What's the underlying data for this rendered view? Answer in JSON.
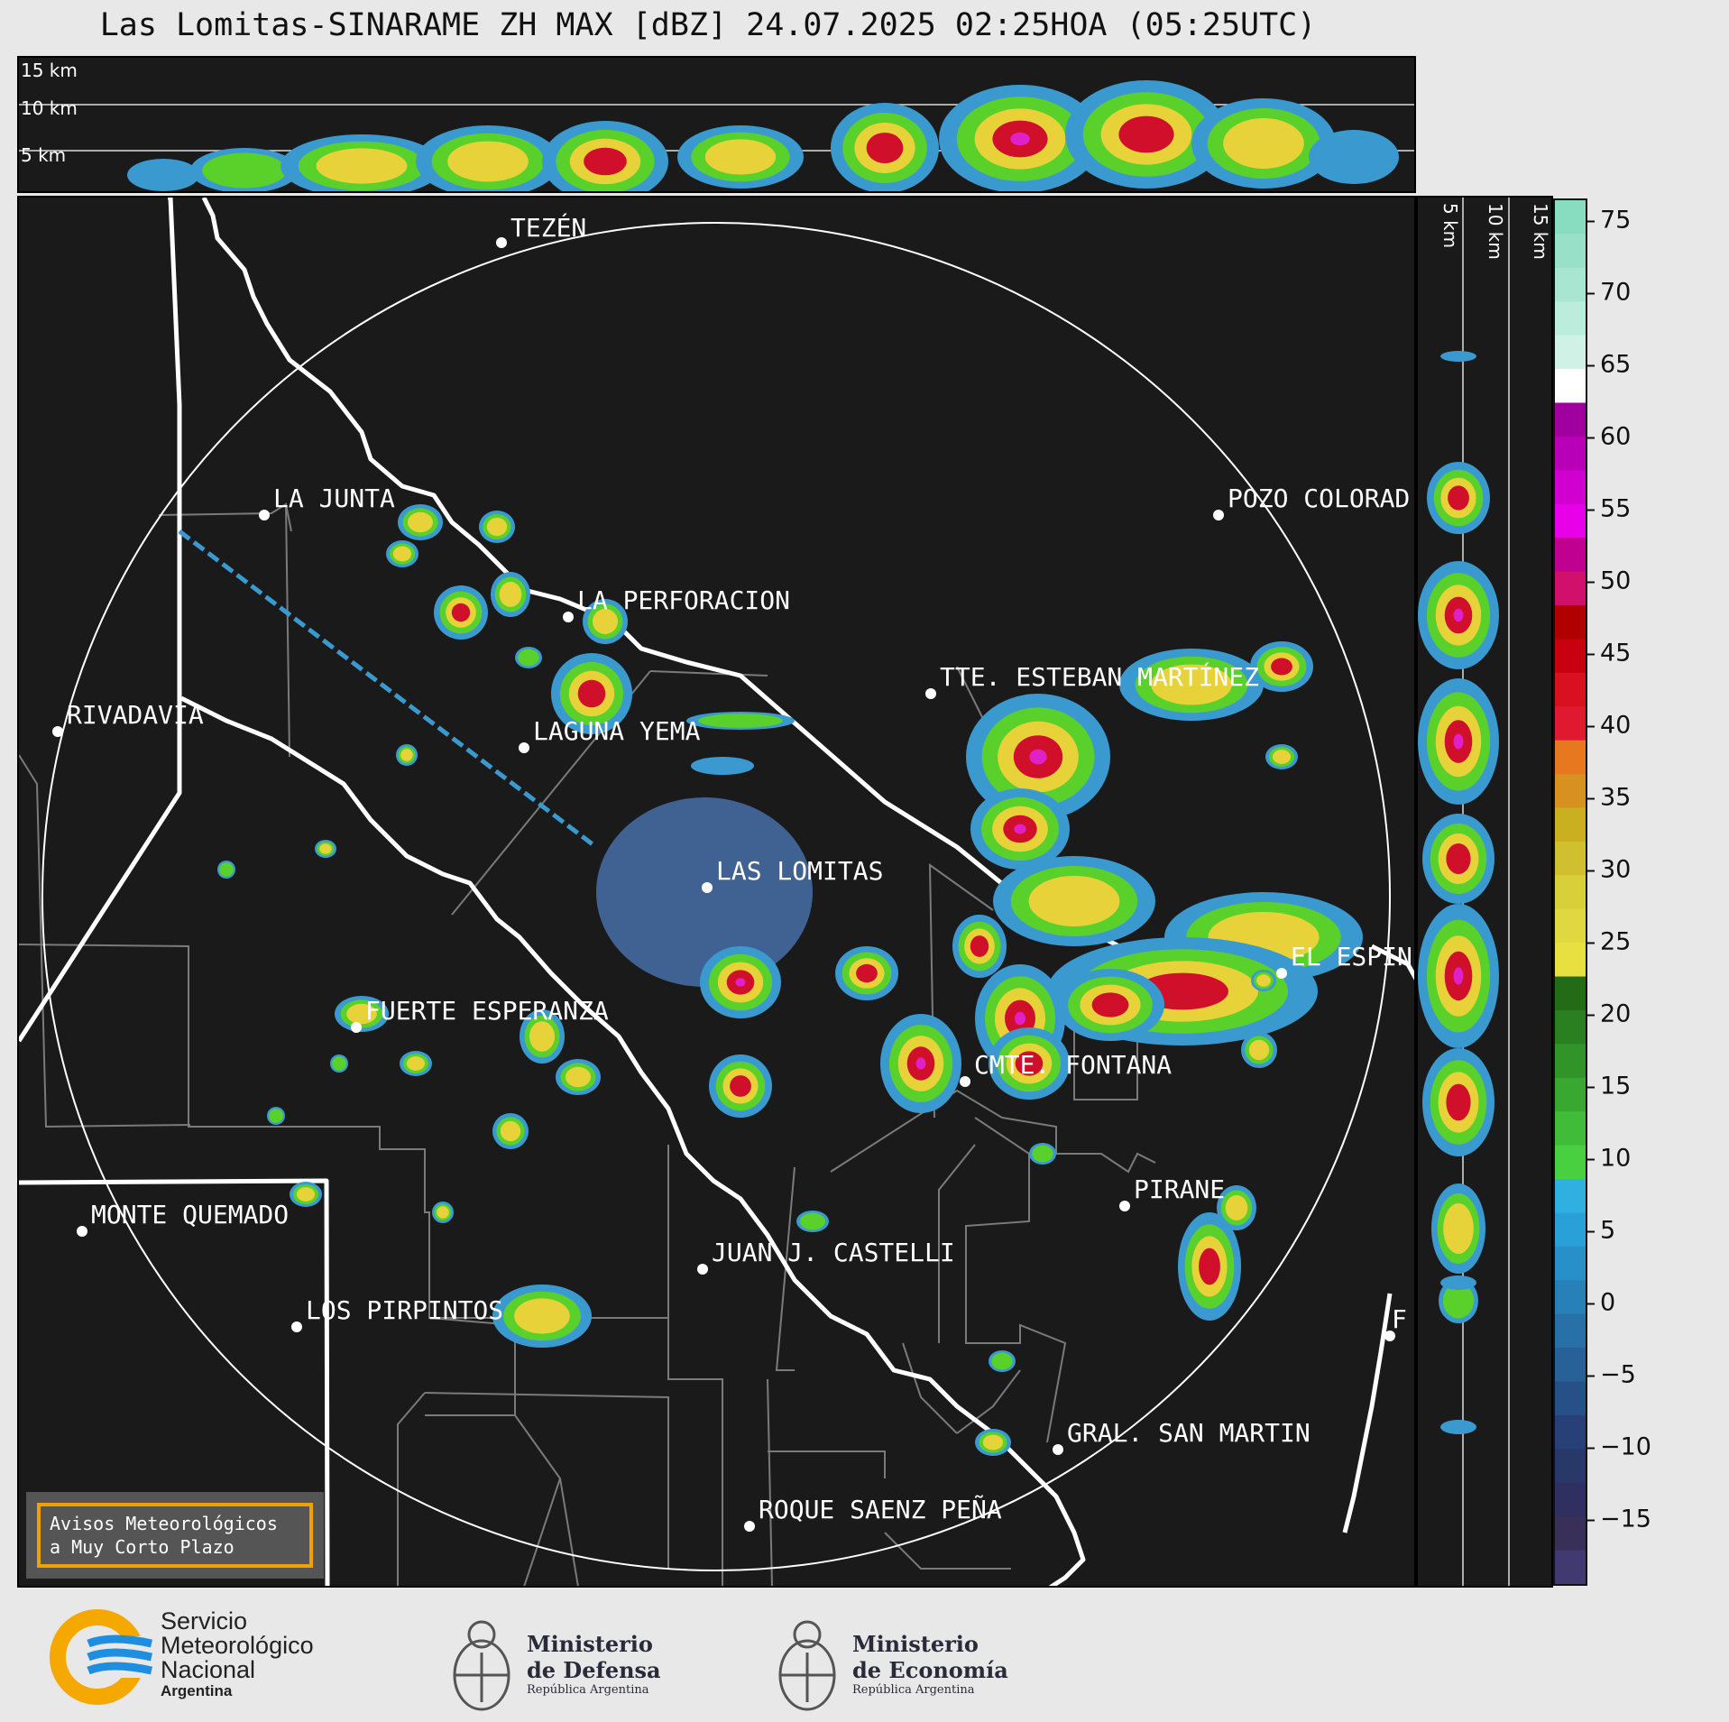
{
  "title": "Las Lomitas-SINARAME ZH MAX [dBZ] 24.07.2025 02:25HOA (05:25UTC)",
  "top_panel": {
    "height_labels": [
      "15 km",
      "10 km",
      "5 km"
    ]
  },
  "side_panel": {
    "height_labels": [
      "5 km",
      "10 km",
      "15 km"
    ]
  },
  "colorbar": {
    "ticks": [
      "75",
      "70",
      "65",
      "60",
      "55",
      "50",
      "45",
      "40",
      "35",
      "30",
      "25",
      "20",
      "15",
      "10",
      "5",
      "0",
      "−5",
      "−10",
      "−15"
    ]
  },
  "cities": [
    {
      "name": "TEZÉN"
    },
    {
      "name": "LA JUNTA"
    },
    {
      "name": "POZO COLORAD"
    },
    {
      "name": "LA PERFORACION"
    },
    {
      "name": "TTE. ESTEBAN MARTÍNEZ"
    },
    {
      "name": "RIVADAVIA"
    },
    {
      "name": "LAGUNA YEMA"
    },
    {
      "name": "LAS LOMITAS"
    },
    {
      "name": "EL ESPIN"
    },
    {
      "name": "FUERTE ESPERANZA"
    },
    {
      "name": "CMTE. FONTANA"
    },
    {
      "name": "PIRANE"
    },
    {
      "name": "MONTE QUEMADO"
    },
    {
      "name": "JUAN J. CASTELLI"
    },
    {
      "name": "LOS PIRPINTOS"
    },
    {
      "name": "GRAL. SAN MARTIN"
    },
    {
      "name": "ROQUE SAENZ PEÑA"
    },
    {
      "name": "F"
    }
  ],
  "avisos": {
    "line1": "Avisos Meteorológicos",
    "line2": "a Muy Corto Plazo"
  },
  "footer": {
    "smn": {
      "line1": "Servicio",
      "line2": "Meteorológico",
      "line3": "Nacional",
      "line4": "Argentina"
    },
    "defensa": {
      "line1": "Ministerio",
      "line2": "de Defensa",
      "line3": "República Argentina"
    },
    "economia": {
      "line1": "Ministerio",
      "line2": "de Economía",
      "line3": "República Argentina"
    }
  },
  "colors": {
    "panel_bg": "#1a1a1a",
    "echo_blue": "#3a9ad0",
    "echo_green": "#5ad12a",
    "echo_yellow": "#e8d23a",
    "echo_red": "#d0102a",
    "echo_magenta": "#e020c8",
    "avisos_border": "#f0a000",
    "smn_blue": "#1e8ee0",
    "smn_orange": "#f5a800"
  }
}
